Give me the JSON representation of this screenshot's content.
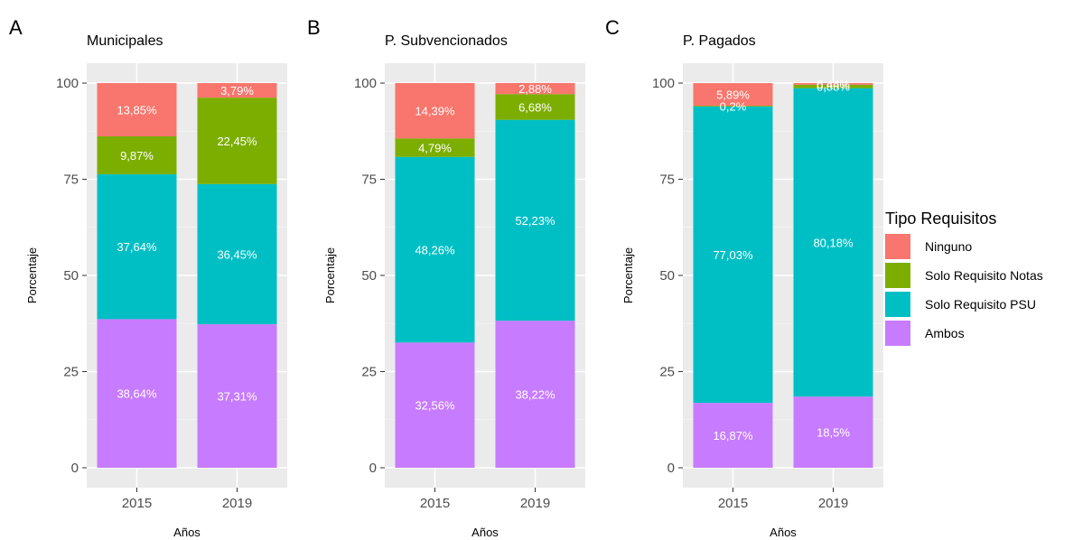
{
  "legend": {
    "title": "Tipo Requisitos",
    "items": [
      {
        "key": "ninguno",
        "label": "Ninguno",
        "color": "#F8766D"
      },
      {
        "key": "notas",
        "label": "Solo Requisito Notas",
        "color": "#7CAE00"
      },
      {
        "key": "psu",
        "label": "Solo Requisito PSU",
        "color": "#00BFC4"
      },
      {
        "key": "ambos",
        "label": "Ambos",
        "color": "#C77CFF"
      }
    ]
  },
  "chart_data": [
    {
      "type": "bar",
      "panel": "A",
      "title": "Municipales",
      "xlabel": "Años",
      "ylabel": "Porcentaje",
      "ylim": [
        0,
        100
      ],
      "yticks": [
        "0",
        "25",
        "50",
        "75",
        "100"
      ],
      "categories": [
        "2015",
        "2019"
      ],
      "stacked": true,
      "series": [
        {
          "name": "Ambos",
          "values": [
            38.64,
            37.31
          ],
          "labels": [
            "38,64%",
            "37,31%"
          ]
        },
        {
          "name": "Solo Requisito PSU",
          "values": [
            37.64,
            36.45
          ],
          "labels": [
            "37,64%",
            "36,45%"
          ]
        },
        {
          "name": "Solo Requisito Notas",
          "values": [
            9.87,
            22.45
          ],
          "labels": [
            "9,87%",
            "22,45%"
          ]
        },
        {
          "name": "Ninguno",
          "values": [
            13.85,
            3.79
          ],
          "labels": [
            "13,85%",
            "3,79%"
          ]
        }
      ]
    },
    {
      "type": "bar",
      "panel": "B",
      "title": "P. Subvencionados",
      "xlabel": "Años",
      "ylabel": "Porcentaje",
      "ylim": [
        0,
        100
      ],
      "yticks": [
        "0",
        "25",
        "50",
        "75",
        "100"
      ],
      "categories": [
        "2015",
        "2019"
      ],
      "stacked": true,
      "series": [
        {
          "name": "Ambos",
          "values": [
            32.56,
            38.22
          ],
          "labels": [
            "32,56%",
            "38,22%"
          ]
        },
        {
          "name": "Solo Requisito PSU",
          "values": [
            48.26,
            52.23
          ],
          "labels": [
            "48,26%",
            "52,23%"
          ]
        },
        {
          "name": "Solo Requisito Notas",
          "values": [
            4.79,
            6.68
          ],
          "labels": [
            "4,79%",
            "6,68%"
          ]
        },
        {
          "name": "Ninguno",
          "values": [
            14.39,
            2.88
          ],
          "labels": [
            "14,39%",
            "2,88%"
          ]
        }
      ]
    },
    {
      "type": "bar",
      "panel": "C",
      "title": "P. Pagados",
      "xlabel": "Años",
      "ylabel": "Porcentaje",
      "ylim": [
        0,
        100
      ],
      "yticks": [
        "0",
        "25",
        "50",
        "75",
        "100"
      ],
      "categories": [
        "2015",
        "2019"
      ],
      "stacked": true,
      "series": [
        {
          "name": "Ambos",
          "values": [
            16.87,
            18.5
          ],
          "labels": [
            "16,87%",
            "18,5%"
          ]
        },
        {
          "name": "Solo Requisito PSU",
          "values": [
            77.03,
            80.18
          ],
          "labels": [
            "77,03%",
            "80,18%"
          ]
        },
        {
          "name": "Solo Requisito Notas",
          "values": [
            0.2,
            0.88
          ],
          "labels": [
            "0,2%",
            "0,88%"
          ]
        },
        {
          "name": "Ninguno",
          "values": [
            5.89,
            0.44
          ],
          "labels": [
            "5,89%",
            "0,44%"
          ]
        }
      ]
    }
  ]
}
